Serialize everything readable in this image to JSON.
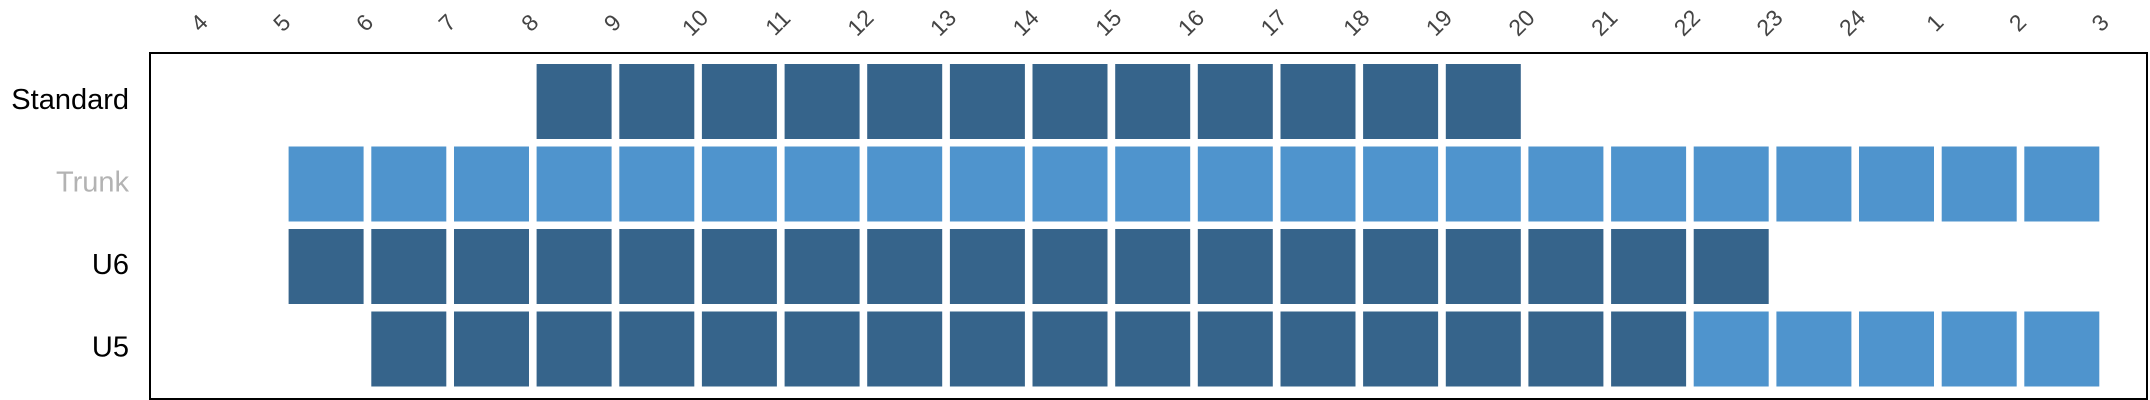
{
  "chart_data": {
    "type": "heatmap",
    "title": "",
    "xlabel": "",
    "ylabel": "",
    "x_ticks": [
      "4",
      "5",
      "6",
      "7",
      "8",
      "9",
      "10",
      "11",
      "12",
      "13",
      "14",
      "15",
      "16",
      "17",
      "18",
      "19",
      "20",
      "21",
      "22",
      "23",
      "24",
      "1",
      "2",
      "3"
    ],
    "rows": [
      {
        "label": "Standard",
        "label_color": "#000000",
        "spans": [
          {
            "start": "8",
            "end": "19",
            "color": "#36648b"
          }
        ]
      },
      {
        "label": "Trunk",
        "label_color": "#b3b3b3",
        "spans": [
          {
            "start": "5",
            "end": "2",
            "color": "#4f94cd"
          }
        ]
      },
      {
        "label": "U6",
        "label_color": "#000000",
        "spans": [
          {
            "start": "5",
            "end": "22",
            "color": "#36648b"
          }
        ]
      },
      {
        "label": "U5",
        "label_color": "#000000",
        "spans": [
          {
            "start": "6",
            "end": "21",
            "color": "#36648b"
          },
          {
            "start": "22",
            "end": "2",
            "color": "#4f94cd"
          }
        ]
      }
    ],
    "grid": false,
    "legend": "none",
    "colors": {
      "dark": "#36648b",
      "light": "#4f94cd",
      "border": "#000000"
    }
  }
}
